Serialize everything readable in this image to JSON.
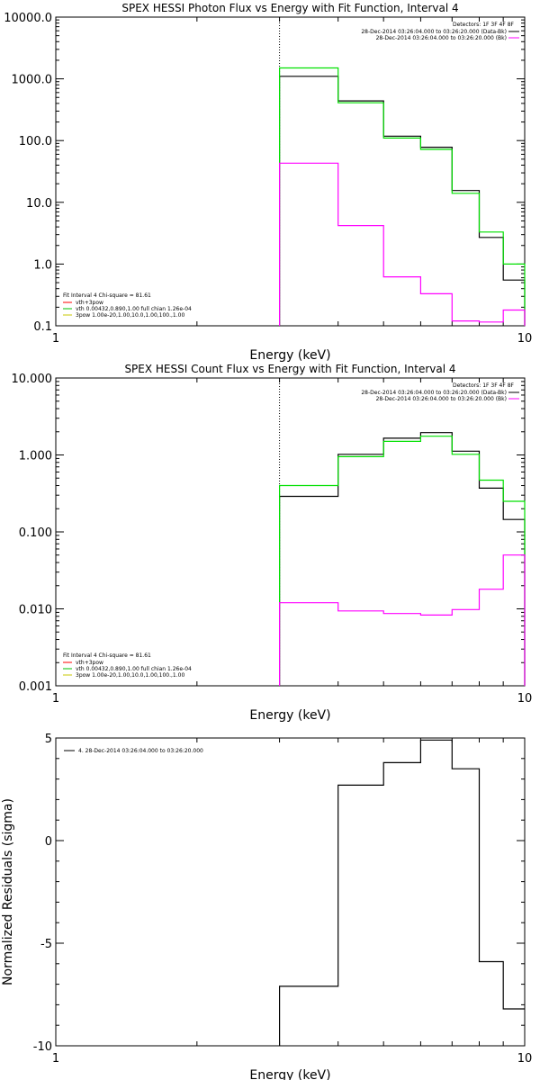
{
  "chart_data": [
    {
      "type": "line",
      "title": "SPEX HESSI Photon Flux vs Energy with Fit Function, Interval 4",
      "xlabel": "Energy (keV)",
      "ylabel": "",
      "xscale": "log",
      "yscale": "log",
      "xlim": [
        1,
        10
      ],
      "ylim": [
        0.1,
        10000
      ],
      "xticks": [
        {
          "v": 1,
          "t": "1"
        },
        {
          "v": 10,
          "t": "10"
        }
      ],
      "yticks": [
        {
          "v": 10000,
          "t": "10000.0"
        },
        {
          "v": 1000,
          "t": "1000.0"
        },
        {
          "v": 100,
          "t": "100.0"
        },
        {
          "v": 10,
          "t": "10.0"
        },
        {
          "v": 1,
          "t": "1.0"
        },
        {
          "v": 0.1,
          "t": "0.1"
        }
      ],
      "vline": 3,
      "legend_right": {
        "header": "Detectors: 1F 3F 4F 8F",
        "entries": [
          {
            "text": "28-Dec-2014 03:26:04.000 to 03:26:20.000 (Data-Bk)",
            "color": "#000000"
          },
          {
            "text": "28-Dec-2014 03:26:04.000 to 03:26:20.000 (Bk)",
            "color": "#ff00ff"
          }
        ]
      },
      "legend_left": {
        "header": "Fit Interval 4   Chi-square = 81.61",
        "entries": [
          {
            "text": "vth+3pow",
            "color": "#ff0000"
          },
          {
            "text": "vth 0.00432,0.890,1.00  full chian 1.26e-04",
            "color": "#00c000"
          },
          {
            "text": "3pow 1.00e-20,1.00,10.0,1.00,100.,1.00",
            "color": "#c8c800"
          }
        ]
      },
      "edges": [
        3.0,
        4.0,
        5.0,
        6.0,
        7.0,
        8.0,
        9.0,
        10.0
      ],
      "series": [
        {
          "color": "#000000",
          "values": [
            1100,
            440,
            118,
            78,
            15.5,
            2.7,
            0.55
          ]
        },
        {
          "color": "#00e000",
          "values": [
            1500,
            410,
            110,
            72,
            14,
            3.3,
            1.0
          ]
        },
        {
          "color": "#ff00ff",
          "values": [
            43,
            4.2,
            0.62,
            0.33,
            0.12,
            0.115,
            0.18
          ]
        }
      ]
    },
    {
      "type": "line",
      "title": "SPEX HESSI Count Flux vs Energy with Fit Function, Interval 4",
      "xlabel": "Energy (keV)",
      "ylabel": "",
      "xscale": "log",
      "yscale": "log",
      "xlim": [
        1,
        10
      ],
      "ylim": [
        0.001,
        10
      ],
      "xticks": [
        {
          "v": 1,
          "t": "1"
        },
        {
          "v": 10,
          "t": "10"
        }
      ],
      "yticks": [
        {
          "v": 10,
          "t": "10.000"
        },
        {
          "v": 1,
          "t": "1.000"
        },
        {
          "v": 0.1,
          "t": "0.100"
        },
        {
          "v": 0.01,
          "t": "0.010"
        },
        {
          "v": 0.001,
          "t": "0.001"
        }
      ],
      "vline": 3,
      "legend_right": {
        "header": "Detectors: 1F 3F 4F 8F",
        "entries": [
          {
            "text": "28-Dec-2014 03:26:04.000 to 03:26:20.000 (Data-Bk)",
            "color": "#000000"
          },
          {
            "text": "28-Dec-2014 03:26:04.000 to 03:26:20.000 (Bk)",
            "color": "#ff00ff"
          }
        ]
      },
      "legend_left": {
        "header": "Fit Interval 4   Chi-square = 81.61",
        "entries": [
          {
            "text": "vth+3pow",
            "color": "#ff0000"
          },
          {
            "text": "vth 0.00432,0.890,1.00  full chian 1.26e-04",
            "color": "#00c000"
          },
          {
            "text": "3pow 1.00e-20,1.00,10.0,1.00,100.,1.00",
            "color": "#c8c800"
          }
        ]
      },
      "edges": [
        3.0,
        4.0,
        5.0,
        6.0,
        7.0,
        8.0,
        9.0,
        10.0
      ],
      "series": [
        {
          "color": "#000000",
          "values": [
            0.29,
            1.02,
            1.65,
            1.95,
            1.12,
            0.37,
            0.145
          ]
        },
        {
          "color": "#00e000",
          "values": [
            0.4,
            0.95,
            1.5,
            1.75,
            1.02,
            0.47,
            0.25
          ]
        },
        {
          "color": "#ff00ff",
          "values": [
            0.012,
            0.0094,
            0.0087,
            0.0083,
            0.0098,
            0.018,
            0.05
          ]
        }
      ]
    },
    {
      "type": "line",
      "title": "",
      "xlabel": "Energy (keV)",
      "ylabel": "Normalized Residuals (sigma)",
      "xscale": "log",
      "yscale": "linear",
      "xlim": [
        1,
        10
      ],
      "ylim": [
        -10,
        5
      ],
      "xticks": [
        {
          "v": 1,
          "t": "1"
        },
        {
          "v": 10,
          "t": "10"
        }
      ],
      "yticks": [
        {
          "v": 5,
          "t": "5"
        },
        {
          "v": 0,
          "t": "0"
        },
        {
          "v": -5,
          "t": "-5"
        },
        {
          "v": -10,
          "t": "-10"
        }
      ],
      "legend_left": {
        "header": "",
        "entries": [
          {
            "text": "4. 28-Dec-2014 03:26:04.000 to 03:26:20.000",
            "color": "#000000"
          }
        ]
      },
      "edges": [
        3.0,
        4.0,
        5.0,
        6.0,
        7.0,
        8.0,
        9.0,
        10.0
      ],
      "series": [
        {
          "color": "#000000",
          "values": [
            -7.1,
            2.7,
            3.8,
            4.9,
            3.5,
            -5.9,
            -8.2
          ]
        }
      ]
    }
  ]
}
